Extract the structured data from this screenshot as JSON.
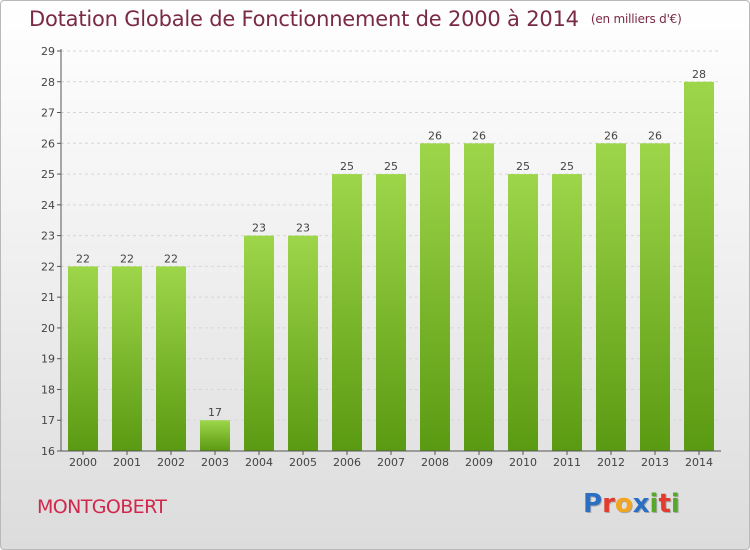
{
  "header": {
    "title": "Dotation Globale de Fonctionnement de 2000 à 2014",
    "unit": "(en milliers d'€)"
  },
  "footer": {
    "commune": "MONTGOBERT",
    "brand": "Proxiti",
    "brand_letters": [
      "P",
      "r",
      "o",
      "x",
      "i",
      "t",
      "i"
    ],
    "brand_colors": [
      "#2b6fc2",
      "#e33b2e",
      "#f3a51f",
      "#2b6fc2",
      "#55a82a",
      "#e33b2e",
      "#55a82a"
    ]
  },
  "colors": {
    "bar_top": "#9ed64a",
    "bar_bottom": "#5a9a12",
    "title": "#7a2a43",
    "commune": "#d0284c",
    "grid": "#d6d6d6"
  },
  "chart_data": {
    "type": "bar",
    "categories": [
      "2000",
      "2001",
      "2002",
      "2003",
      "2004",
      "2005",
      "2006",
      "2007",
      "2008",
      "2009",
      "2010",
      "2011",
      "2012",
      "2013",
      "2014"
    ],
    "values": [
      22,
      22,
      22,
      17,
      23,
      23,
      25,
      25,
      26,
      26,
      25,
      25,
      26,
      26,
      28
    ],
    "ylim": [
      16,
      29
    ],
    "yticks": [
      16,
      17,
      18,
      19,
      20,
      21,
      22,
      23,
      24,
      25,
      26,
      27,
      28,
      29
    ],
    "grid": true,
    "data_labels": true
  }
}
